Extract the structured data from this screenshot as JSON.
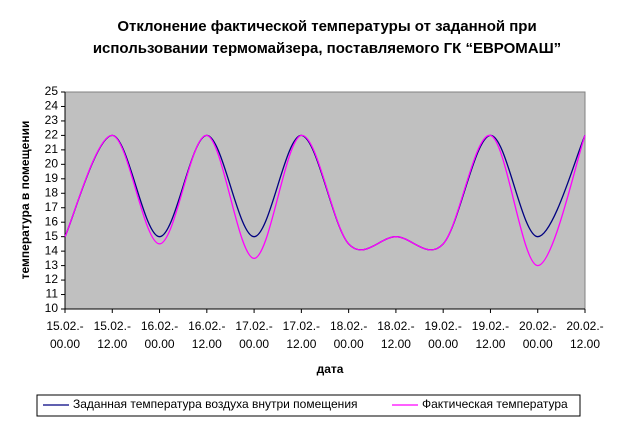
{
  "chart_data": {
    "type": "line",
    "title": [
      "Отклонение фактической температуры от заданной при",
      "использовании термомайзера, поставляемого ГК “ЕВРОМАШ”"
    ],
    "x_label": "дата",
    "y_label": "температура в помещении",
    "categories": [
      "15.02.- 00.00",
      "15.02.- 12.00",
      "16.02.- 00.00",
      "16.02.- 12.00",
      "17.02.- 00.00",
      "17.02.- 12.00",
      "18.02.- 00.00",
      "18.02.- 12.00",
      "19.02.- 00.00",
      "19.02.- 12.00",
      "20.02.- 00.00",
      "20.02.- 12.00"
    ],
    "series": [
      {
        "name": "Заданная температура воздуха внутри помещения",
        "color": "#000080",
        "values": [
          15,
          22,
          15,
          22,
          15,
          22,
          14.5,
          15,
          14.5,
          22,
          15,
          22
        ]
      },
      {
        "name": "Фактическая температура",
        "color": "#ff00ff",
        "values": [
          15,
          22,
          14.5,
          22,
          13.5,
          22,
          14.5,
          15,
          14.5,
          22,
          13,
          22
        ]
      }
    ],
    "ylim": [
      10,
      25
    ],
    "yticks": [
      10,
      11,
      12,
      13,
      14,
      15,
      16,
      17,
      18,
      19,
      20,
      21,
      22,
      23,
      24,
      25
    ],
    "smooth": true,
    "plot_background": "#c0c0c0",
    "legend": "bottom"
  }
}
